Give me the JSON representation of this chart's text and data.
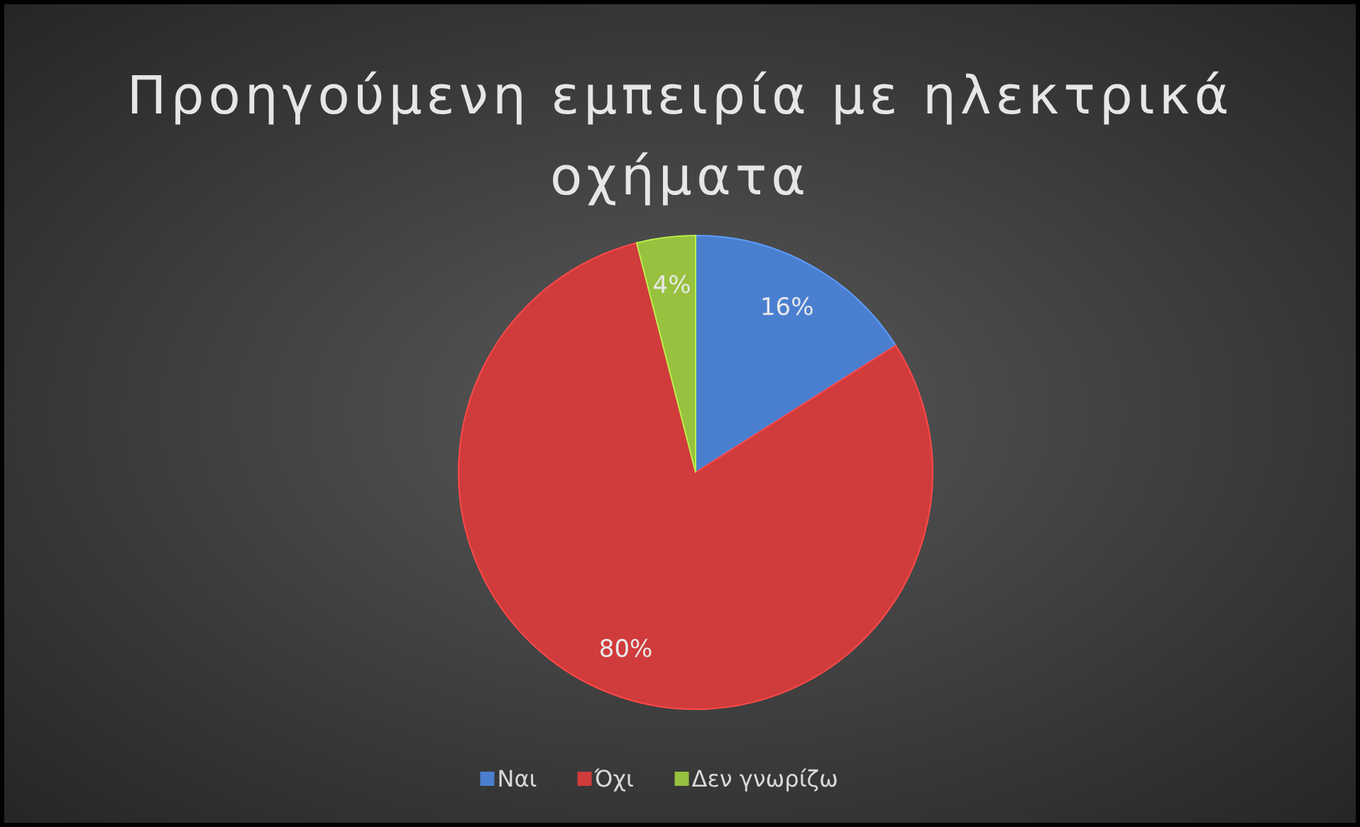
{
  "chart_data": {
    "type": "pie",
    "title": "Προηγούμενη εμπειρία με ηλεκτρικά οχήματα",
    "categories": [
      "Ναι",
      "Όχι",
      "Δεν γνωρίζω"
    ],
    "values": [
      16,
      80,
      4
    ],
    "colors": [
      "#4a7fd0",
      "#d03b3b",
      "#97c13e"
    ],
    "value_labels": [
      "16%",
      "80%",
      "4%"
    ],
    "legend": "bottom"
  }
}
